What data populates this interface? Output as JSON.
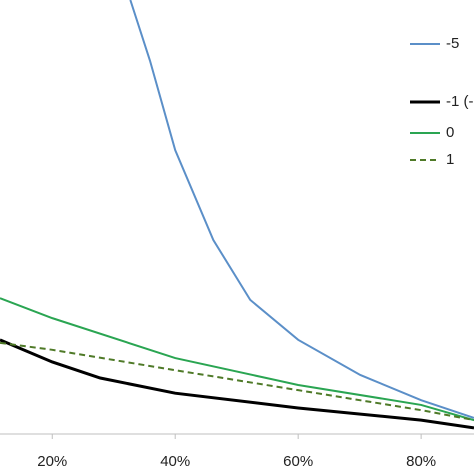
{
  "chart_data": {
    "type": "line",
    "xlim": [
      11.5,
      88.6
    ],
    "ylim": [
      0,
      100
    ],
    "xticks": [
      {
        "value": 20,
        "label": "20%"
      },
      {
        "value": 40,
        "label": "40%"
      },
      {
        "value": 60,
        "label": "60%"
      },
      {
        "value": 80,
        "label": "80%"
      }
    ],
    "legend": "right",
    "series": [
      {
        "name": "-5",
        "color": "#5b8fc8",
        "dash": false,
        "width": 2,
        "x": [
          32.7,
          35.9,
          40,
          46.2,
          52.2,
          60,
          70.1,
          80,
          88.6
        ],
        "values": [
          100,
          86,
          65.4,
          44.7,
          30.9,
          21.7,
          13.6,
          7.8,
          3.7
        ]
      },
      {
        "name": "-1 (-",
        "color": "#000000",
        "dash": false,
        "width": 3,
        "x": [
          11.5,
          20,
          27.8,
          40,
          60,
          80,
          88.6
        ],
        "values": [
          21.7,
          16.6,
          12.9,
          9.4,
          6,
          3.2,
          1.4
        ]
      },
      {
        "name": "0",
        "color": "#2aa552",
        "dash": false,
        "width": 2,
        "x": [
          11.5,
          20,
          40,
          60,
          80,
          88.6
        ],
        "values": [
          31.3,
          26.7,
          17.5,
          11.3,
          6.7,
          3.2
        ]
      },
      {
        "name": "1",
        "color": "#4f7a28",
        "dash": true,
        "width": 2,
        "x": [
          11.5,
          20,
          40,
          60,
          80,
          88.6
        ],
        "values": [
          21,
          19.4,
          14.7,
          10.1,
          5.5,
          3.2
        ]
      }
    ]
  }
}
